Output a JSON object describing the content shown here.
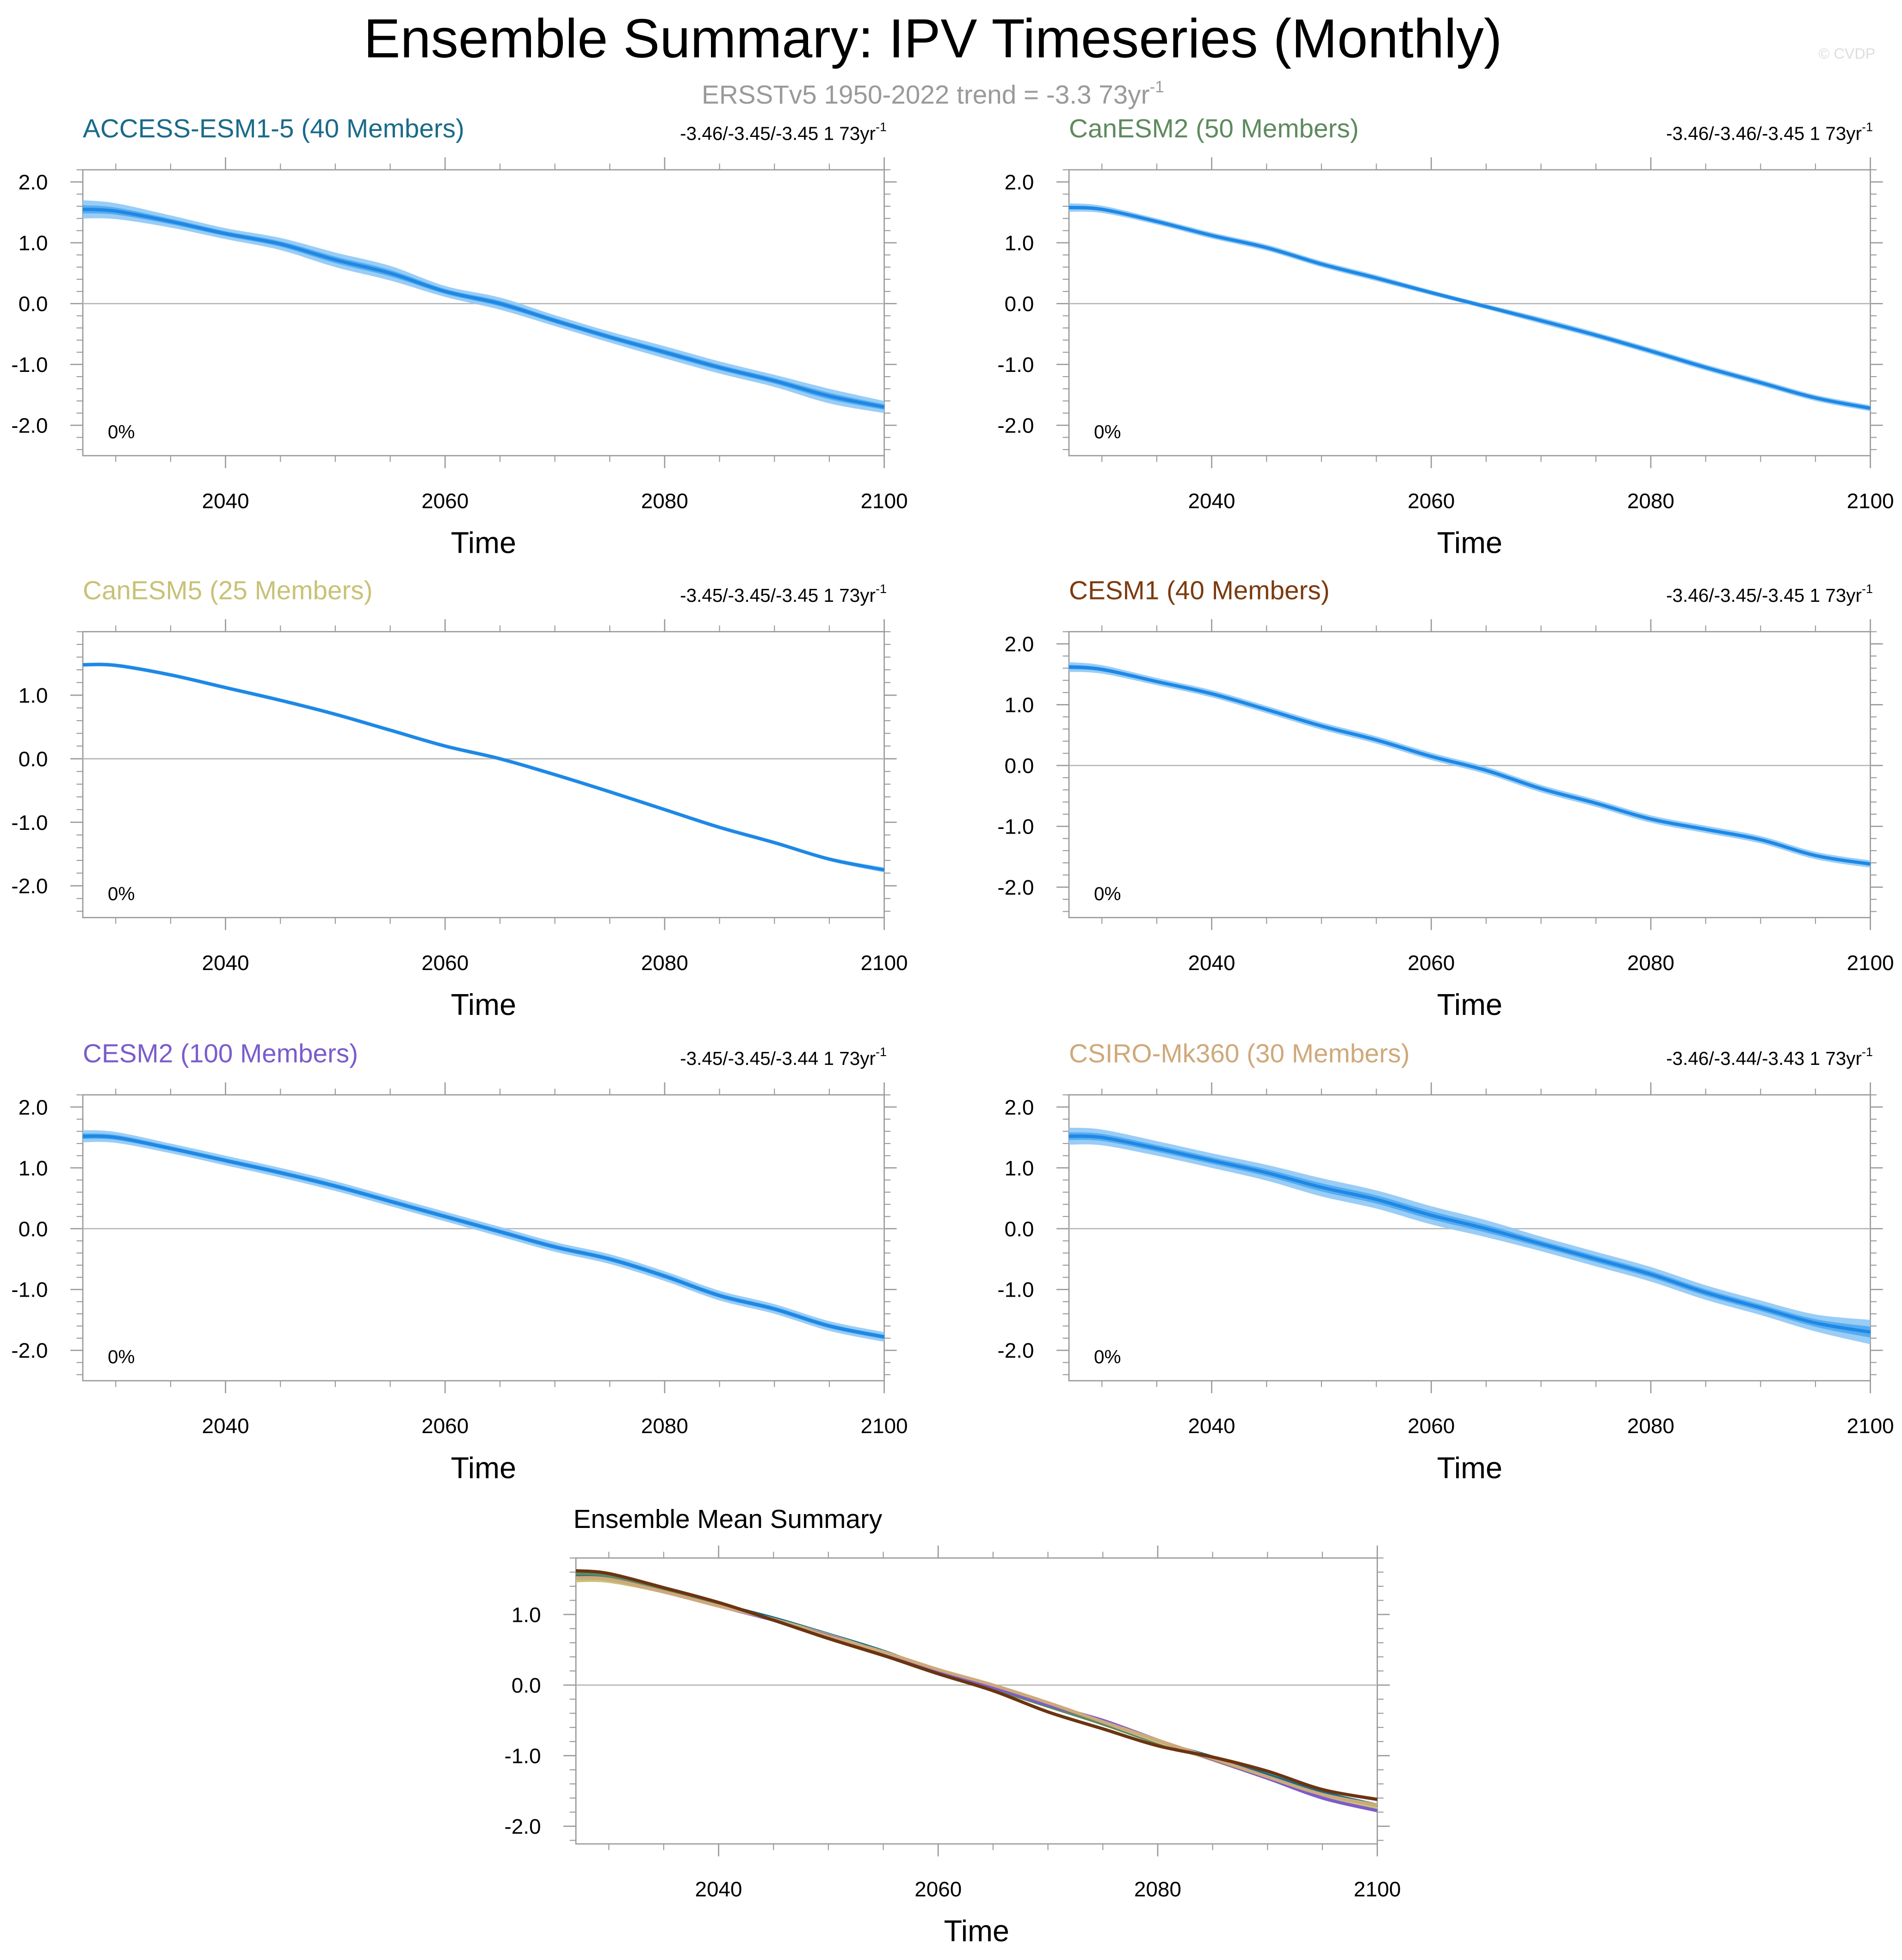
{
  "figure": {
    "title": "Ensemble Summary: IPV Timeseries (Monthly)",
    "subtitle_main": "ERSSTv5 1950-2022 trend = -3.3 73yr",
    "subtitle_exp": "-1",
    "watermark": "© CVDP",
    "xlabel": "Time"
  },
  "chart_data": [
    {
      "type": "area",
      "title": "ACCESS-ESM1-5 (40 Members)",
      "title_color": "#1a6b8a",
      "trend_text": "-3.46/-3.45/-3.45 1 73yr",
      "trend_exp": "-1",
      "pct_label": "0%",
      "xlabel": "Time",
      "xlim": [
        2027,
        2100
      ],
      "ylim": [
        -2.5,
        2.2
      ],
      "xticks": [
        2040,
        2060,
        2080,
        2100
      ],
      "yticks": [
        -2.0,
        -1.0,
        0.0,
        1.0,
        2.0
      ],
      "ytick_labels": [
        "-2.0",
        "-1.0",
        "0.0",
        "1.0",
        "2.0"
      ],
      "x": [
        2027,
        2030,
        2035,
        2040,
        2045,
        2050,
        2055,
        2060,
        2065,
        2070,
        2075,
        2080,
        2085,
        2090,
        2095,
        2100
      ],
      "mean": [
        1.55,
        1.52,
        1.35,
        1.15,
        0.98,
        0.72,
        0.5,
        0.2,
        0.0,
        -0.28,
        -0.55,
        -0.8,
        -1.05,
        -1.27,
        -1.52,
        -1.7
      ],
      "spread": [
        0.15,
        0.13,
        0.1,
        0.09,
        0.1,
        0.12,
        0.12,
        0.09,
        0.1,
        0.09,
        0.09,
        0.1,
        0.1,
        0.1,
        0.12,
        0.1
      ]
    },
    {
      "type": "area",
      "title": "CanESM2 (50 Members)",
      "title_color": "#5e8a5e",
      "trend_text": "-3.46/-3.46/-3.45 1 73yr",
      "trend_exp": "-1",
      "pct_label": "0%",
      "xlabel": "Time",
      "xlim": [
        2027,
        2100
      ],
      "ylim": [
        -2.5,
        2.2
      ],
      "xticks": [
        2040,
        2060,
        2080,
        2100
      ],
      "yticks": [
        -2.0,
        -1.0,
        0.0,
        1.0,
        2.0
      ],
      "ytick_labels": [
        "-2.0",
        "-1.0",
        "0.0",
        "1.0",
        "2.0"
      ],
      "x": [
        2027,
        2030,
        2035,
        2040,
        2045,
        2050,
        2055,
        2060,
        2065,
        2070,
        2075,
        2080,
        2085,
        2090,
        2095,
        2100
      ],
      "mean": [
        1.58,
        1.55,
        1.35,
        1.12,
        0.92,
        0.65,
        0.42,
        0.18,
        -0.05,
        -0.28,
        -0.52,
        -0.78,
        -1.05,
        -1.3,
        -1.55,
        -1.72
      ],
      "spread": [
        0.07,
        0.06,
        0.05,
        0.05,
        0.05,
        0.05,
        0.05,
        0.04,
        0.04,
        0.05,
        0.05,
        0.05,
        0.05,
        0.05,
        0.05,
        0.05
      ]
    },
    {
      "type": "area",
      "title": "CanESM5 (25 Members)",
      "title_color": "#c8c277",
      "trend_text": "-3.45/-3.45/-3.45 1 73yr",
      "trend_exp": "-1",
      "pct_label": "0%",
      "xlabel": "Time",
      "xlim": [
        2027,
        2100
      ],
      "ylim": [
        -2.5,
        2.0
      ],
      "xticks": [
        2040,
        2060,
        2080,
        2100
      ],
      "yticks": [
        -2.0,
        -1.0,
        0.0,
        1.0
      ],
      "ytick_labels": [
        "-2.0",
        "-1.0",
        "0.0",
        "1.0"
      ],
      "x": [
        2027,
        2030,
        2035,
        2040,
        2045,
        2050,
        2055,
        2060,
        2065,
        2070,
        2075,
        2080,
        2085,
        2090,
        2095,
        2100
      ],
      "mean": [
        1.48,
        1.47,
        1.32,
        1.12,
        0.92,
        0.7,
        0.45,
        0.2,
        0.0,
        -0.25,
        -0.52,
        -0.8,
        -1.08,
        -1.32,
        -1.58,
        -1.75
      ],
      "spread": [
        0.03,
        0.03,
        0.03,
        0.03,
        0.03,
        0.03,
        0.03,
        0.03,
        0.03,
        0.03,
        0.03,
        0.03,
        0.03,
        0.03,
        0.03,
        0.04
      ]
    },
    {
      "type": "area",
      "title": "CESM1 (40 Members)",
      "title_color": "#7b3b0f",
      "trend_text": "-3.46/-3.45/-3.45 1 73yr",
      "trend_exp": "-1",
      "pct_label": "0%",
      "xlabel": "Time",
      "xlim": [
        2027,
        2100
      ],
      "ylim": [
        -2.5,
        2.2
      ],
      "xticks": [
        2040,
        2060,
        2080,
        2100
      ],
      "yticks": [
        -2.0,
        -1.0,
        0.0,
        1.0,
        2.0
      ],
      "ytick_labels": [
        "-2.0",
        "-1.0",
        "0.0",
        "1.0",
        "2.0"
      ],
      "x": [
        2027,
        2030,
        2035,
        2040,
        2045,
        2050,
        2055,
        2060,
        2065,
        2070,
        2075,
        2080,
        2085,
        2090,
        2095,
        2100
      ],
      "mean": [
        1.62,
        1.58,
        1.38,
        1.18,
        0.92,
        0.65,
        0.42,
        0.15,
        -0.08,
        -0.38,
        -0.62,
        -0.88,
        -1.05,
        -1.22,
        -1.48,
        -1.62
      ],
      "spread": [
        0.08,
        0.07,
        0.06,
        0.06,
        0.06,
        0.06,
        0.06,
        0.06,
        0.06,
        0.06,
        0.06,
        0.06,
        0.06,
        0.06,
        0.06,
        0.06
      ]
    },
    {
      "type": "area",
      "title": "CESM2 (100 Members)",
      "title_color": "#7b5ccc",
      "trend_text": "-3.45/-3.45/-3.44 1 73yr",
      "trend_exp": "-1",
      "pct_label": "0%",
      "xlabel": "Time",
      "xlim": [
        2027,
        2100
      ],
      "ylim": [
        -2.5,
        2.2
      ],
      "xticks": [
        2040,
        2060,
        2080,
        2100
      ],
      "yticks": [
        -2.0,
        -1.0,
        0.0,
        1.0,
        2.0
      ],
      "ytick_labels": [
        "-2.0",
        "-1.0",
        "0.0",
        "1.0",
        "2.0"
      ],
      "x": [
        2027,
        2030,
        2035,
        2040,
        2045,
        2050,
        2055,
        2060,
        2065,
        2070,
        2075,
        2080,
        2085,
        2090,
        2095,
        2100
      ],
      "mean": [
        1.52,
        1.5,
        1.32,
        1.12,
        0.92,
        0.7,
        0.45,
        0.2,
        -0.05,
        -0.3,
        -0.5,
        -0.78,
        -1.1,
        -1.32,
        -1.6,
        -1.78
      ],
      "spread": [
        0.1,
        0.09,
        0.08,
        0.08,
        0.08,
        0.08,
        0.08,
        0.08,
        0.08,
        0.08,
        0.08,
        0.08,
        0.08,
        0.08,
        0.08,
        0.08
      ]
    },
    {
      "type": "area",
      "title": "CSIRO-Mk360 (30 Members)",
      "title_color": "#cfa97a",
      "trend_text": "-3.46/-3.44/-3.43 1 73yr",
      "trend_exp": "-1",
      "pct_label": "0%",
      "xlabel": "Time",
      "xlim": [
        2027,
        2100
      ],
      "ylim": [
        -2.5,
        2.2
      ],
      "xticks": [
        2040,
        2060,
        2080,
        2100
      ],
      "yticks": [
        -2.0,
        -1.0,
        0.0,
        1.0,
        2.0
      ],
      "ytick_labels": [
        "-2.0",
        "-1.0",
        "0.0",
        "1.0",
        "2.0"
      ],
      "x": [
        2027,
        2030,
        2035,
        2040,
        2045,
        2050,
        2055,
        2060,
        2065,
        2070,
        2075,
        2080,
        2085,
        2090,
        2095,
        2100
      ],
      "mean": [
        1.52,
        1.5,
        1.32,
        1.12,
        0.92,
        0.68,
        0.48,
        0.22,
        0.0,
        -0.25,
        -0.5,
        -0.75,
        -1.05,
        -1.3,
        -1.55,
        -1.7
      ],
      "spread": [
        0.14,
        0.13,
        0.12,
        0.12,
        0.13,
        0.15,
        0.15,
        0.15,
        0.14,
        0.12,
        0.12,
        0.12,
        0.12,
        0.12,
        0.14,
        0.2
      ]
    },
    {
      "type": "line",
      "title": "Ensemble Mean Summary",
      "xlabel": "Time",
      "xlim": [
        2027,
        2100
      ],
      "ylim": [
        -2.25,
        1.8
      ],
      "xticks": [
        2040,
        2060,
        2080,
        2100
      ],
      "yticks": [
        -2.0,
        -1.0,
        0.0,
        1.0
      ],
      "ytick_labels": [
        "-2.0",
        "-1.0",
        "0.0",
        "1.0"
      ],
      "x": [
        2027,
        2030,
        2035,
        2040,
        2045,
        2050,
        2055,
        2060,
        2065,
        2070,
        2075,
        2080,
        2085,
        2090,
        2095,
        2100
      ],
      "series": [
        {
          "name": "ACCESS-ESM1-5",
          "color": "#1a6b8a",
          "values": [
            1.55,
            1.52,
            1.35,
            1.15,
            0.95,
            0.72,
            0.48,
            0.2,
            -0.02,
            -0.28,
            -0.55,
            -0.8,
            -1.02,
            -1.27,
            -1.52,
            -1.7
          ]
        },
        {
          "name": "CanESM2",
          "color": "#5e8a5e",
          "values": [
            1.58,
            1.55,
            1.36,
            1.14,
            0.92,
            0.66,
            0.42,
            0.18,
            -0.05,
            -0.3,
            -0.55,
            -0.82,
            -1.05,
            -1.3,
            -1.55,
            -1.72
          ]
        },
        {
          "name": "CanESM5",
          "color": "#c8c277",
          "values": [
            1.48,
            1.47,
            1.32,
            1.12,
            0.93,
            0.71,
            0.46,
            0.21,
            0.0,
            -0.25,
            -0.52,
            -0.8,
            -1.06,
            -1.32,
            -1.58,
            -1.75
          ]
        },
        {
          "name": "CESM2",
          "color": "#7b5ccc",
          "values": [
            1.52,
            1.5,
            1.32,
            1.12,
            0.92,
            0.7,
            0.45,
            0.2,
            -0.03,
            -0.28,
            -0.5,
            -0.78,
            -1.05,
            -1.32,
            -1.6,
            -1.78
          ]
        },
        {
          "name": "CSIRO-Mk360",
          "color": "#cfa97a",
          "values": [
            1.52,
            1.5,
            1.32,
            1.12,
            0.93,
            0.69,
            0.47,
            0.22,
            0.0,
            -0.25,
            -0.52,
            -0.78,
            -1.04,
            -1.3,
            -1.55,
            -1.7
          ]
        },
        {
          "name": "CESM1",
          "color": "#6b3410",
          "values": [
            1.62,
            1.58,
            1.38,
            1.17,
            0.92,
            0.66,
            0.42,
            0.16,
            -0.08,
            -0.38,
            -0.62,
            -0.86,
            -1.02,
            -1.22,
            -1.48,
            -1.62
          ]
        }
      ]
    }
  ]
}
